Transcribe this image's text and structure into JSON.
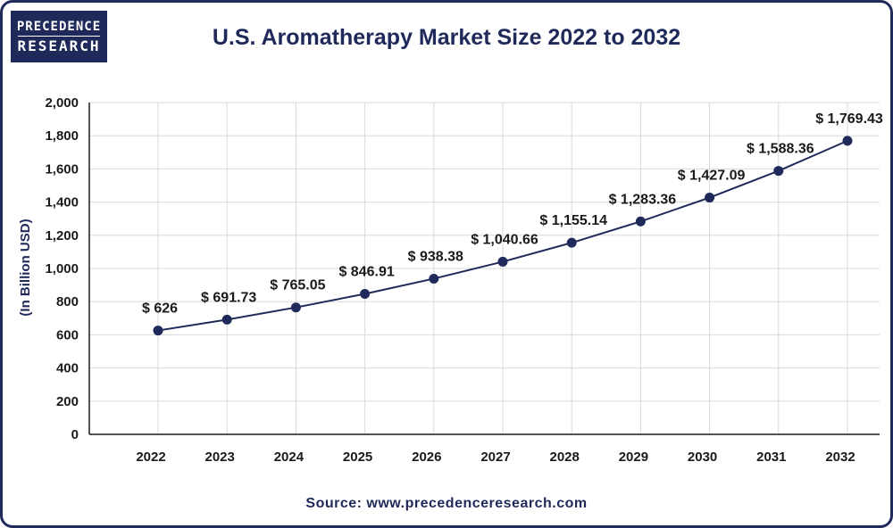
{
  "logo": {
    "line1": "PRECEDENCE",
    "line2": "RESEARCH"
  },
  "title": "U.S. Aromatherapy Market Size 2022 to 2032",
  "source": "Source: www.precedenceresearch.com",
  "colors": {
    "primary": "#1f2a5a",
    "grid": "#d9d9d9",
    "axis": "#1a1a1a"
  },
  "chart_data": {
    "type": "line",
    "title": "U.S. Aromatherapy Market Size 2022 to 2032",
    "xlabel": "",
    "ylabel": "(In Billion USD)",
    "categories": [
      "2022",
      "2023",
      "2024",
      "2025",
      "2026",
      "2027",
      "2028",
      "2029",
      "2030",
      "2031",
      "2032"
    ],
    "series": [
      {
        "values": [
          626,
          691.73,
          765.05,
          846.91,
          938.38,
          1040.66,
          1155.14,
          1283.36,
          1427.09,
          1588.36,
          1769.43
        ],
        "labels": [
          "$ 626",
          "$ 691.73",
          "$ 765.05",
          "$ 846.91",
          "$ 938.38",
          "$ 1,040.66",
          "$ 1,155.14",
          "$ 1,283.36",
          "$ 1,427.09",
          "$ 1,588.36",
          "$ 1,769.43"
        ]
      }
    ],
    "ylim": [
      0,
      2000
    ],
    "yticks": [
      0,
      200,
      400,
      600,
      800,
      1000,
      1200,
      1400,
      1600,
      1800,
      2000
    ],
    "ytick_labels": [
      "0",
      "200",
      "400",
      "600",
      "800",
      "1,000",
      "1,200",
      "1,400",
      "1,600",
      "1,800",
      "2,000"
    ],
    "grid": true,
    "legend": false
  }
}
